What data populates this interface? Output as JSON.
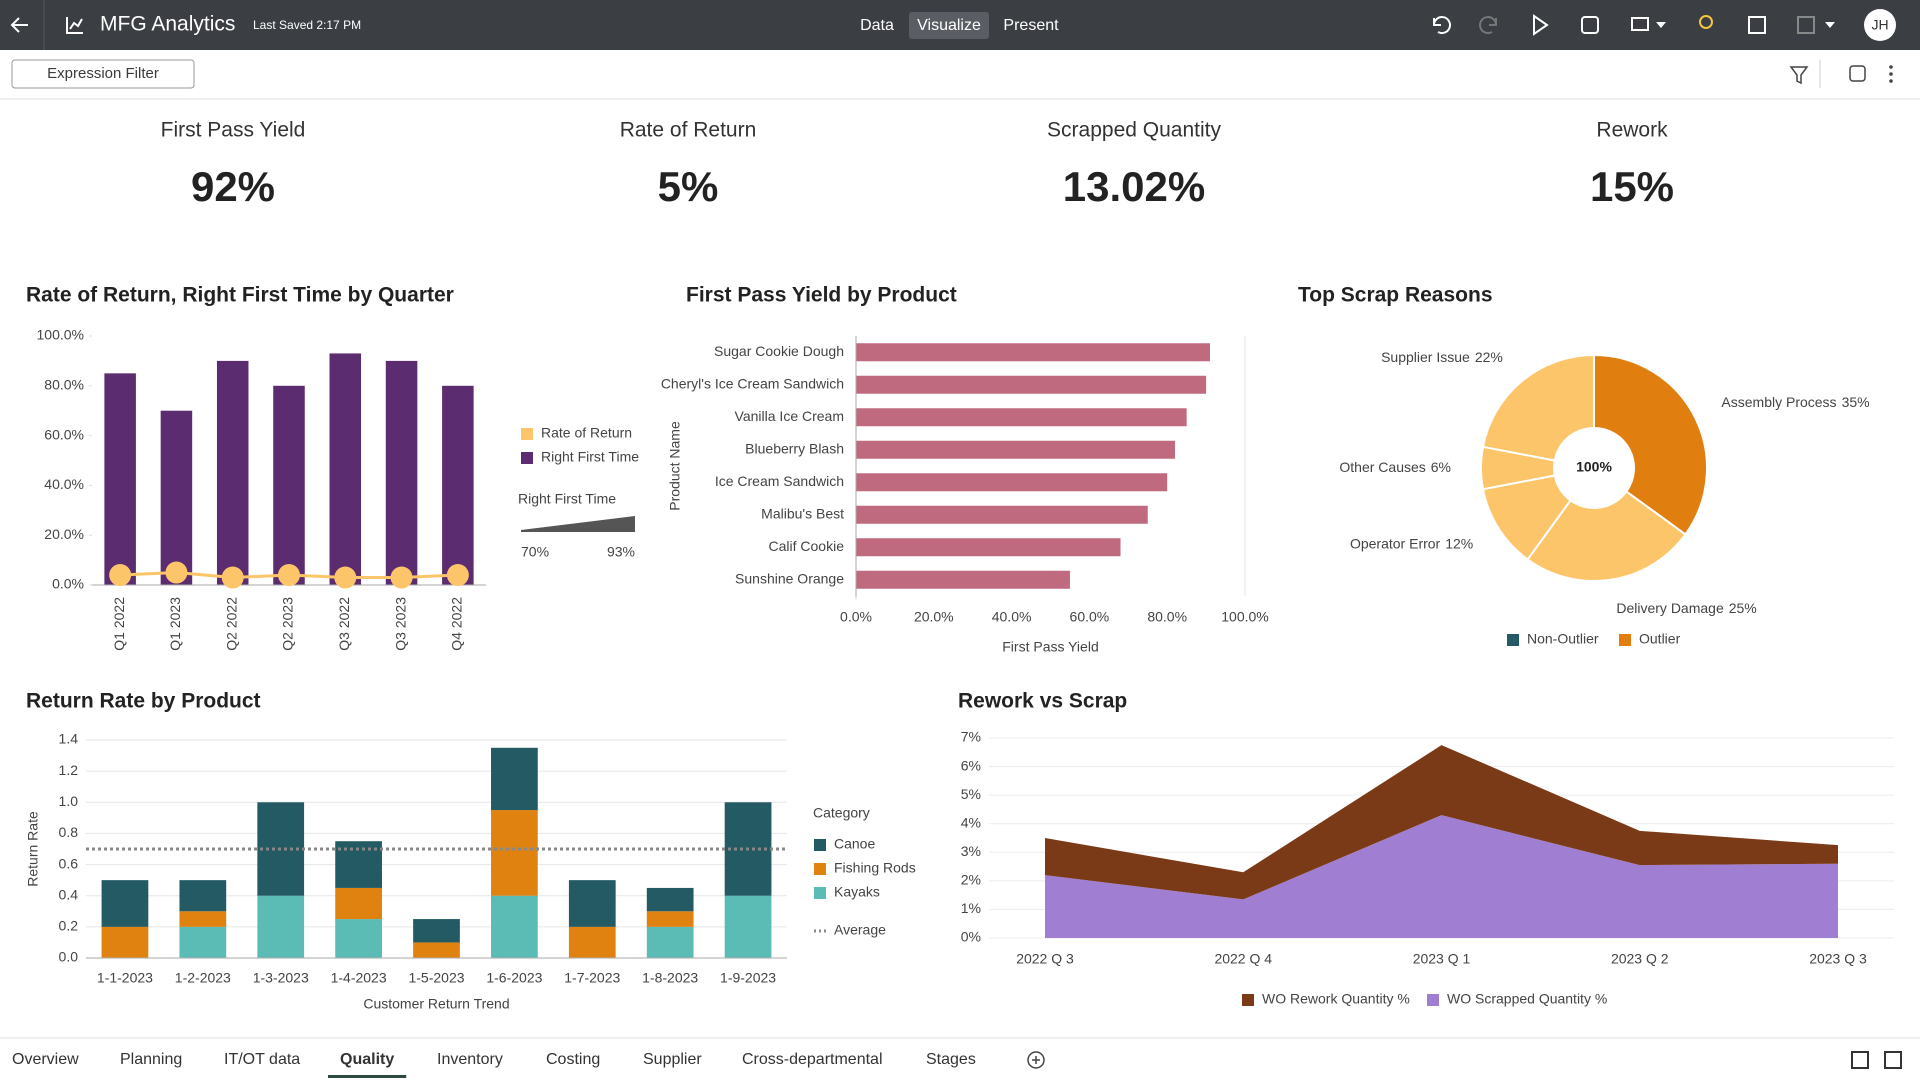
{
  "header": {
    "title": "MFG Analytics",
    "saved": "Last Saved 2:17 PM",
    "modes": [
      "Data",
      "Visualize",
      "Present"
    ],
    "active_mode": 1,
    "user": "JH"
  },
  "filter_button": "Expression Filter",
  "kpis": [
    {
      "title": "First Pass Yield",
      "value": "92%"
    },
    {
      "title": "Rate of Return",
      "value": "5%"
    },
    {
      "title": "Scrapped Quantity",
      "value": "13.02%"
    },
    {
      "title": "Rework",
      "value": "15%"
    }
  ],
  "chart_data": [
    {
      "type": "bar_line",
      "title": "Rate of Return, Right First Time by Quarter",
      "categories": [
        "Q1 2022",
        "Q1 2023",
        "Q2 2022",
        "Q2 2023",
        "Q3 2022",
        "Q3 2023",
        "Q4 2022"
      ],
      "series": [
        {
          "name": "Rate of Return",
          "color": "#fcc56a",
          "type": "line",
          "values": [
            4,
            5,
            3,
            4,
            3,
            3,
            4
          ]
        },
        {
          "name": "Right First Time",
          "color": "#5b2c6f",
          "type": "bar",
          "values": [
            85,
            70,
            90,
            80,
            93,
            90,
            80
          ]
        }
      ],
      "ylim": [
        0,
        100
      ],
      "yticks": [
        {
          "value": 0,
          "label": "0.0%"
        },
        {
          "value": 20,
          "label": "20.0%"
        },
        {
          "value": 40,
          "label": "40.0%"
        },
        {
          "value": 60,
          "label": "60.0%"
        },
        {
          "value": 80,
          "label": "80.0%"
        },
        {
          "value": 100,
          "label": "100.0%"
        }
      ],
      "grid": false,
      "legend": "right",
      "range_filter": {
        "title": "Right First Time",
        "min": {
          "value": 70,
          "label": "70%"
        },
        "max": {
          "value": 93,
          "label": "93%"
        }
      }
    },
    {
      "type": "hbar",
      "title": "First Pass Yield by Product",
      "categories": [
        "Sugar Cookie Dough",
        "Cheryl's Ice Cream Sandwich",
        "Vanilla Ice Cream",
        "Blueberry Blash",
        "Ice Cream Sandwich",
        "Malibu's Best",
        "Calif Cookie",
        "Sunshine Orange"
      ],
      "values": [
        91,
        90,
        85,
        82,
        80,
        75,
        68,
        55
      ],
      "color": "#c06a80",
      "xlim": [
        0,
        100
      ],
      "xticks": [
        {
          "value": 0,
          "label": "0.0%"
        },
        {
          "value": 20,
          "label": "20.0%"
        },
        {
          "value": 40,
          "label": "40.0%"
        },
        {
          "value": 60,
          "label": "60.0%"
        },
        {
          "value": 80,
          "label": "80.0%"
        },
        {
          "value": 100,
          "label": "100.0%"
        }
      ],
      "x_label": "First Pass Yield",
      "y_label": "Product Name",
      "grid": true
    },
    {
      "type": "pie",
      "title": "Top Scrap Reasons",
      "categories": [
        "Assembly Process",
        "Delivery Damage",
        "Operator Error",
        "Other Causes",
        "Supplier Issue"
      ],
      "values": [
        35,
        25,
        12,
        6,
        22
      ],
      "value_labels": [
        "35%",
        "25%",
        "12%",
        "6%",
        "22%"
      ],
      "colors": [
        "#e07f10",
        "#fcc56a",
        "#fcc56a",
        "#fcc56a",
        "#fcc56a"
      ],
      "center_label": "100%",
      "legend_items": [
        {
          "name": "Non-Outlier",
          "color": "#235a63"
        },
        {
          "name": "Outlier",
          "color": "#e07f10"
        }
      ]
    },
    {
      "type": "stacked_bar",
      "title": "Return Rate by Product",
      "categories": [
        "1-1-2023",
        "1-2-2023",
        "1-3-2023",
        "1-4-2023",
        "1-5-2023",
        "1-6-2023",
        "1-7-2023",
        "1-8-2023",
        "1-9-2023"
      ],
      "series": [
        {
          "name": "Canoe",
          "color": "#235a63",
          "values": [
            0.3,
            0.2,
            0.6,
            0.3,
            0.15,
            0.4,
            0.3,
            0.15,
            0.6
          ]
        },
        {
          "name": "Fishing Rods",
          "color": "#e0820f",
          "values": [
            0.2,
            0.1,
            0,
            0.2,
            0.1,
            0.55,
            0.2,
            0.1,
            0
          ]
        },
        {
          "name": "Kayaks",
          "color": "#5bbcb5",
          "values": [
            0,
            0.2,
            0.4,
            0.25,
            0,
            0.4,
            0,
            0.2,
            0.4
          ]
        }
      ],
      "ylim": [
        0,
        1.4
      ],
      "yticks": [
        {
          "value": 0,
          "label": "0.0"
        },
        0.2,
        0.4,
        0.6,
        0.8,
        {
          "value": 1,
          "label": "1.0"
        },
        1.2,
        1.4
      ],
      "x_label": "Customer Return Trend",
      "y_label": "Return Rate",
      "legend_title": "Category",
      "average": {
        "name": "Average",
        "value": 0.7
      },
      "grid": true
    },
    {
      "type": "stacked_area",
      "title": "Rework vs Scrap",
      "categories": [
        "2022 Q 3",
        "2022 Q 4",
        "2023 Q 1",
        "2023 Q 2",
        "2023 Q 3"
      ],
      "series": [
        {
          "name": "WO Rework Quantity %",
          "color": "#7b3a17",
          "values": [
            1.3,
            0.95,
            2.45,
            1.2,
            0.65
          ]
        },
        {
          "name": "WO Scrapped Quantity %",
          "color": "#a07fd3",
          "values": [
            2.2,
            1.35,
            4.3,
            2.55,
            2.6
          ]
        }
      ],
      "ylim": [
        0,
        7
      ],
      "yticks": [
        {
          "value": 0,
          "label": "0%"
        },
        {
          "value": 1,
          "label": "1%"
        },
        {
          "value": 2,
          "label": "2%"
        },
        {
          "value": 3,
          "label": "3%"
        },
        {
          "value": 4,
          "label": "4%"
        },
        {
          "value": 5,
          "label": "5%"
        },
        {
          "value": 6,
          "label": "6%"
        },
        {
          "value": 7,
          "label": "7%"
        }
      ],
      "grid": true
    }
  ],
  "tabs": [
    "Overview",
    "Planning",
    "IT/OT data",
    "Quality",
    "Inventory",
    "Costing",
    "Supplier",
    "Cross-departmental",
    "Stages"
  ],
  "active_tab": 3
}
